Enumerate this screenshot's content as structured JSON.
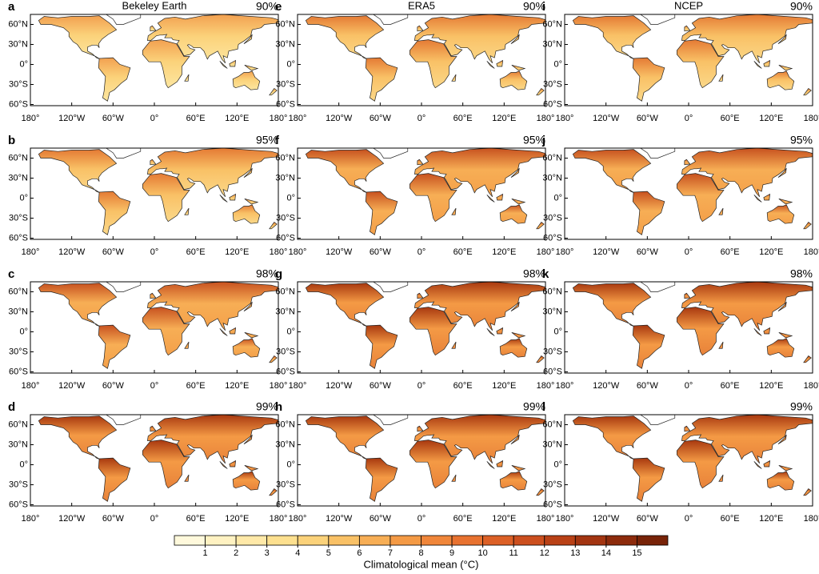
{
  "panels": [
    {
      "letter": "a",
      "title": "Bekeley Earth",
      "percentile": "90%"
    },
    {
      "letter": "b",
      "percentile": "95%"
    },
    {
      "letter": "c",
      "percentile": "98%"
    },
    {
      "letter": "d",
      "percentile": "99%"
    },
    {
      "letter": "e",
      "title": "ERA5",
      "percentile": "90%"
    },
    {
      "letter": "f",
      "percentile": "95%"
    },
    {
      "letter": "g",
      "percentile": "98%"
    },
    {
      "letter": "h",
      "percentile": "99%"
    },
    {
      "letter": "i",
      "title": "NCEP",
      "percentile": "90%"
    },
    {
      "letter": "j",
      "percentile": "95%"
    },
    {
      "letter": "k",
      "percentile": "98%"
    },
    {
      "letter": "l",
      "percentile": "99%"
    }
  ],
  "lat_labels": [
    "60°N",
    "30°N",
    "0°",
    "30°S",
    "60°S"
  ],
  "lon_labels": [
    "180°",
    "120°W",
    "60°W",
    "0°",
    "60°E",
    "120°E",
    "180°"
  ],
  "colorbar": {
    "label": "Climatological mean (°C)",
    "ticks": [
      1,
      2,
      3,
      4,
      5,
      6,
      7,
      8,
      9,
      10,
      11,
      12,
      13,
      14,
      15
    ],
    "colors": [
      "#fff9dc",
      "#fff2c2",
      "#ffe9a8",
      "#fde08f",
      "#fbd27a",
      "#f9c166",
      "#f7ae55",
      "#f49a45",
      "#f0863a",
      "#e87230",
      "#dc6026",
      "#cc4f1e",
      "#b94116",
      "#a33511",
      "#8d2b0c",
      "#782308"
    ]
  }
}
